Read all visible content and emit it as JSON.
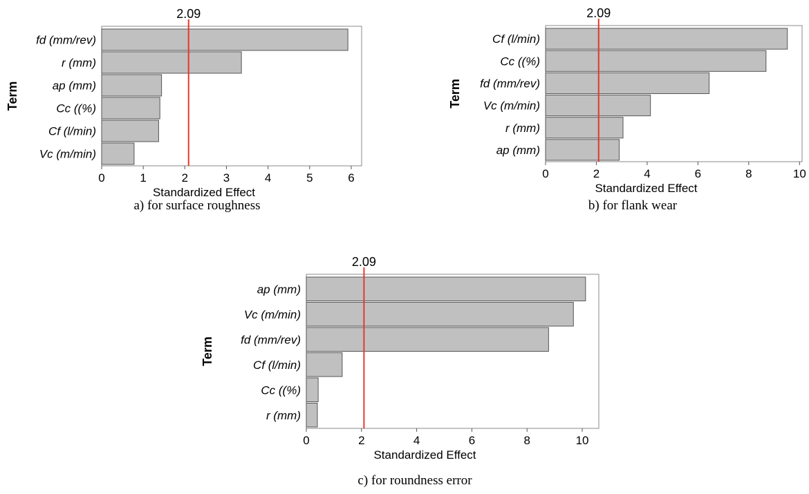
{
  "chart_data": [
    {
      "type": "bar",
      "orientation": "horizontal",
      "caption": "a) for surface roughness",
      "categories": [
        "fd (mm/rev)",
        "r (mm)",
        "ap (mm)",
        "Cc ((%)",
        "Cf (l/min)",
        "Vc (m/min)"
      ],
      "values": [
        5.92,
        3.36,
        1.44,
        1.4,
        1.37,
        0.78
      ],
      "reference_line": 2.09,
      "reference_label": "2.09",
      "xlabel": "Standardized Effect",
      "ylabel": "Term",
      "xlim": [
        0,
        6.25
      ],
      "xticks": [
        0,
        1,
        2,
        3,
        4,
        5,
        6
      ],
      "colors": {
        "bar": "#c0c0c0",
        "bar_edge": "#555555",
        "reference": "#e8372a"
      }
    },
    {
      "type": "bar",
      "orientation": "horizontal",
      "caption": "b) for flank wear",
      "categories": [
        "Cf (l/min)",
        "Cc ((%)",
        "fd (mm/rev)",
        "Vc (m/min)",
        "r (mm)",
        "ap (mm)"
      ],
      "values": [
        9.52,
        8.68,
        6.44,
        4.13,
        3.05,
        2.9
      ],
      "reference_line": 2.09,
      "reference_label": "2.09",
      "xlabel": "Standardized Effect",
      "ylabel": "Term",
      "xlim": [
        0,
        10.1
      ],
      "xticks": [
        0,
        2,
        4,
        6,
        8,
        10
      ],
      "colors": {
        "bar": "#c0c0c0",
        "bar_edge": "#555555",
        "reference": "#e8372a"
      }
    },
    {
      "type": "bar",
      "orientation": "horizontal",
      "caption": "c) for roundness error",
      "categories": [
        "ap (mm)",
        "Vc (m/min)",
        "fd (mm/rev)",
        "Cf (l/min)",
        "Cc ((%)",
        "r (mm)"
      ],
      "values": [
        10.12,
        9.68,
        8.78,
        1.3,
        0.43,
        0.4
      ],
      "reference_line": 2.09,
      "reference_label": "2.09",
      "xlabel": "Standardized Effect",
      "ylabel": "Term",
      "xlim": [
        0,
        10.6
      ],
      "xticks": [
        0,
        2,
        4,
        6,
        8,
        10
      ],
      "colors": {
        "bar": "#c0c0c0",
        "bar_edge": "#555555",
        "reference": "#e8372a"
      }
    }
  ]
}
